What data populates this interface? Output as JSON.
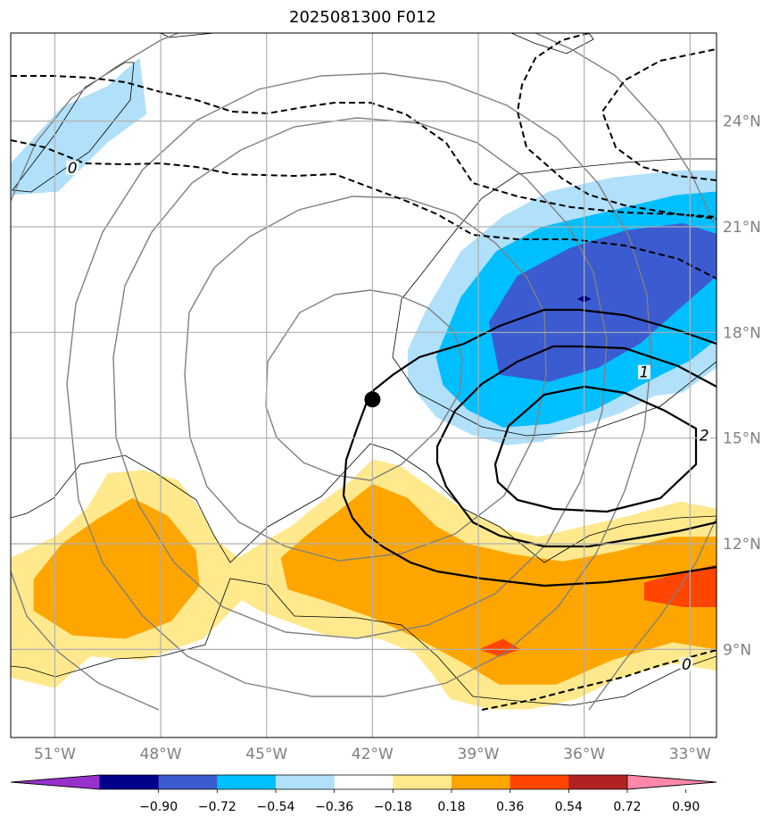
{
  "chart_data": {
    "type": "contour map",
    "title": "2025081300 F012",
    "x_ticks": [
      "51°W",
      "48°W",
      "45°W",
      "42°W",
      "39°W",
      "36°W",
      "33°W"
    ],
    "x_tick_values": [
      -51,
      -48,
      -45,
      -42,
      -39,
      -36,
      -33
    ],
    "y_ticks": [
      "24°N",
      "21°N",
      "18°N",
      "15°N",
      "12°N",
      "9°N"
    ],
    "y_tick_values": [
      24,
      21,
      18,
      15,
      12,
      9
    ],
    "xlim": [
      -52.25,
      -32.25
    ],
    "ylim": [
      6.5,
      26.5
    ],
    "grid": true,
    "storm_center": {
      "lon": -42.0,
      "lat": 16.1
    },
    "contour_labels": [
      {
        "text": "0",
        "lon": -50.5,
        "lat": 22.6
      },
      {
        "text": "1",
        "lon": -34.3,
        "lat": 16.8
      },
      {
        "text": "2",
        "lon": -32.6,
        "lat": 15.0
      },
      {
        "text": "0",
        "lon": -33.1,
        "lat": 8.5
      }
    ],
    "colorbar": {
      "ticks": [
        "−0.90",
        "−0.72",
        "−0.54",
        "−0.36",
        "−0.18",
        "0.18",
        "0.36",
        "0.54",
        "0.72",
        "0.90"
      ],
      "colors": [
        "#9932cc",
        "#00008b",
        "#3b5bd1",
        "#00bfff",
        "#b0e0fa",
        "#ffffff",
        "#ffe98c",
        "#ffa500",
        "#ff4500",
        "#b22222",
        "#ff88aa"
      ],
      "extend": "both"
    },
    "filled_regions": [
      {
        "level": "-0.36 to -0.18",
        "color": "#b0e0fa",
        "polygon": [
          [
            -52.25,
            22.8
          ],
          [
            -50.8,
            24.4
          ],
          [
            -49.5,
            25.0
          ],
          [
            -48.6,
            25.8
          ],
          [
            -48.4,
            24.2
          ],
          [
            -49.5,
            23.4
          ],
          [
            -50.9,
            22.0
          ],
          [
            -52.25,
            21.9
          ]
        ]
      },
      {
        "level": "-0.36 to -0.18",
        "color": "#b0e0fa",
        "polygon": [
          [
            -40.5,
            18.6
          ],
          [
            -39.5,
            20.3
          ],
          [
            -38.3,
            21.3
          ],
          [
            -37.0,
            22.0
          ],
          [
            -35.2,
            22.4
          ],
          [
            -33.3,
            22.6
          ],
          [
            -32.25,
            22.6
          ],
          [
            -32.25,
            17.0
          ],
          [
            -33.2,
            16.3
          ],
          [
            -34.0,
            16.2
          ],
          [
            -35.0,
            15.7
          ],
          [
            -36.2,
            15.3
          ],
          [
            -37.2,
            14.9
          ],
          [
            -38.2,
            14.8
          ],
          [
            -39.2,
            15.1
          ],
          [
            -40.2,
            15.6
          ],
          [
            -41.0,
            16.6
          ],
          [
            -41.0,
            17.5
          ]
        ]
      },
      {
        "level": "-0.54 to -0.36",
        "color": "#00bfff",
        "polygon": [
          [
            -40.2,
            17.3
          ],
          [
            -39.5,
            19.0
          ],
          [
            -38.5,
            20.3
          ],
          [
            -37.2,
            21.0
          ],
          [
            -35.5,
            21.4
          ],
          [
            -33.4,
            21.9
          ],
          [
            -32.25,
            22.0
          ],
          [
            -32.25,
            17.8
          ],
          [
            -33.0,
            17.2
          ],
          [
            -34.4,
            16.5
          ],
          [
            -35.7,
            15.8
          ],
          [
            -37.0,
            15.4
          ],
          [
            -38.3,
            15.3
          ],
          [
            -39.3,
            15.8
          ],
          [
            -40.0,
            16.5
          ]
        ]
      },
      {
        "level": "-0.72 to -0.54",
        "color": "#3b5bd1",
        "polygon": [
          [
            -38.7,
            18.3
          ],
          [
            -37.9,
            19.6
          ],
          [
            -36.4,
            20.4
          ],
          [
            -34.8,
            20.9
          ],
          [
            -33.2,
            21.1
          ],
          [
            -32.25,
            20.8
          ],
          [
            -32.25,
            19.6
          ],
          [
            -33.5,
            18.5
          ],
          [
            -34.4,
            17.7
          ],
          [
            -35.6,
            17.0
          ],
          [
            -37.0,
            16.6
          ],
          [
            -38.4,
            16.8
          ]
        ]
      },
      {
        "level": "< -0.90",
        "color": "#00008b",
        "polygon": [
          [
            -36.2,
            18.95
          ],
          [
            -36.0,
            19.05
          ],
          [
            -35.8,
            18.95
          ],
          [
            -36.0,
            18.85
          ]
        ]
      },
      {
        "level": "0.18 to 0.36",
        "color": "#ffe98c",
        "polygon": [
          [
            -52.25,
            11.6
          ],
          [
            -51.0,
            12.2
          ],
          [
            -50.1,
            13.0
          ],
          [
            -49.5,
            14.0
          ],
          [
            -48.5,
            14.1
          ],
          [
            -47.5,
            13.8
          ],
          [
            -46.9,
            13.0
          ],
          [
            -46.4,
            12.1
          ],
          [
            -45.8,
            11.6
          ],
          [
            -45.0,
            12.1
          ],
          [
            -44.3,
            12.5
          ],
          [
            -43.7,
            13.0
          ],
          [
            -42.6,
            13.8
          ],
          [
            -42.0,
            14.4
          ],
          [
            -41.2,
            14.2
          ],
          [
            -40.2,
            13.5
          ],
          [
            -39.3,
            12.9
          ],
          [
            -38.2,
            12.4
          ],
          [
            -37.3,
            12.2
          ],
          [
            -36.0,
            12.5
          ],
          [
            -34.7,
            12.8
          ],
          [
            -33.3,
            13.2
          ],
          [
            -32.25,
            13.0
          ],
          [
            -32.25,
            8.4
          ],
          [
            -33.5,
            8.6
          ],
          [
            -35.0,
            8.2
          ],
          [
            -36.2,
            7.6
          ],
          [
            -37.5,
            7.3
          ],
          [
            -38.7,
            7.3
          ],
          [
            -39.8,
            7.6
          ],
          [
            -40.3,
            8.3
          ],
          [
            -40.8,
            8.9
          ],
          [
            -41.8,
            9.3
          ],
          [
            -43.3,
            9.4
          ],
          [
            -44.7,
            9.9
          ],
          [
            -45.2,
            10.1
          ],
          [
            -45.7,
            10.4
          ],
          [
            -46.8,
            9.3
          ],
          [
            -48.5,
            8.7
          ],
          [
            -50.0,
            8.8
          ],
          [
            -51.0,
            7.9
          ],
          [
            -52.25,
            8.2
          ]
        ]
      },
      {
        "level": "0.36 to 0.54",
        "color": "#ffa500",
        "polygon": [
          [
            -51.6,
            11.0
          ],
          [
            -50.8,
            12.0
          ],
          [
            -49.8,
            12.7
          ],
          [
            -48.8,
            13.3
          ],
          [
            -47.8,
            12.8
          ],
          [
            -47.0,
            11.8
          ],
          [
            -46.9,
            10.8
          ],
          [
            -47.7,
            9.8
          ],
          [
            -49.0,
            9.3
          ],
          [
            -50.5,
            9.4
          ],
          [
            -51.6,
            10.1
          ]
        ]
      },
      {
        "level": "0.36 to 0.54",
        "color": "#ffa500",
        "polygon": [
          [
            -44.6,
            11.6
          ],
          [
            -43.8,
            12.3
          ],
          [
            -43.0,
            12.9
          ],
          [
            -42.0,
            13.7
          ],
          [
            -41.0,
            13.3
          ],
          [
            -40.2,
            12.5
          ],
          [
            -39.3,
            12.0
          ],
          [
            -38.0,
            11.7
          ],
          [
            -36.6,
            11.5
          ],
          [
            -35.0,
            11.8
          ],
          [
            -33.5,
            12.2
          ],
          [
            -32.25,
            12.2
          ],
          [
            -32.25,
            9.0
          ],
          [
            -33.5,
            9.2
          ],
          [
            -35.2,
            8.7
          ],
          [
            -36.8,
            8.0
          ],
          [
            -38.4,
            8.0
          ],
          [
            -39.4,
            8.6
          ],
          [
            -40.7,
            9.3
          ],
          [
            -42.0,
            9.9
          ],
          [
            -43.4,
            10.4
          ],
          [
            -44.4,
            10.7
          ]
        ]
      },
      {
        "level": "0.54 to 0.72",
        "color": "#ff4500",
        "polygon": [
          [
            -34.3,
            10.9
          ],
          [
            -33.2,
            11.2
          ],
          [
            -32.25,
            11.4
          ],
          [
            -32.25,
            10.2
          ],
          [
            -33.2,
            10.2
          ],
          [
            -34.3,
            10.4
          ]
        ]
      },
      {
        "level": "0.54 to 0.72",
        "color": "#ff4500",
        "polygon": [
          [
            -39.0,
            9.0
          ],
          [
            -38.3,
            9.3
          ],
          [
            -37.8,
            9.0
          ],
          [
            -38.4,
            8.8
          ]
        ]
      }
    ]
  }
}
